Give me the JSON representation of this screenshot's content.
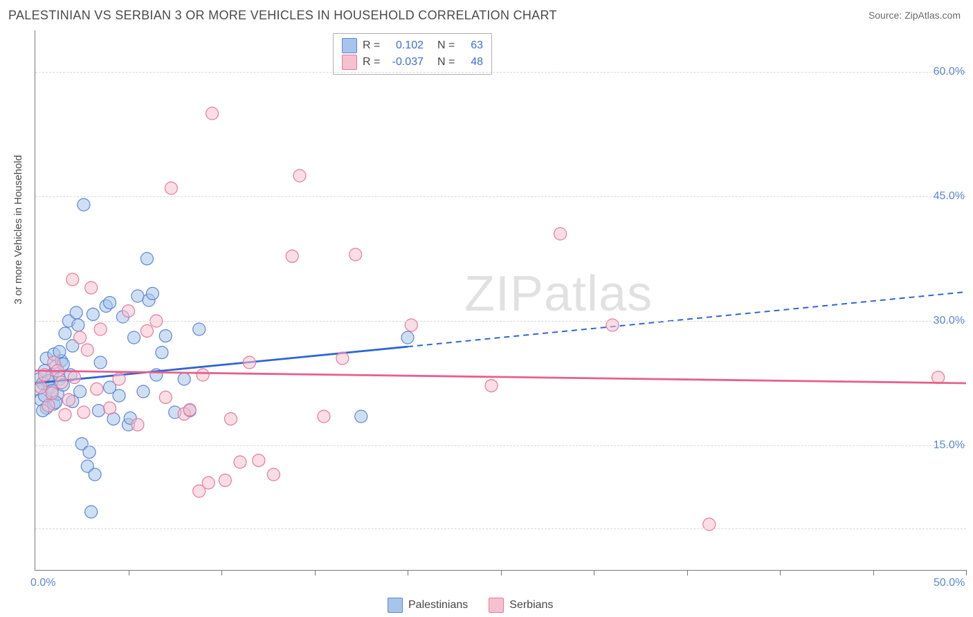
{
  "header": {
    "title": "PALESTINIAN VS SERBIAN 3 OR MORE VEHICLES IN HOUSEHOLD CORRELATION CHART",
    "source": "Source: ZipAtlas.com"
  },
  "watermark": "ZIPatlas",
  "chart": {
    "type": "scatter",
    "ylabel": "3 or more Vehicles in Household",
    "xlim": [
      0,
      50
    ],
    "ylim": [
      0,
      65
    ],
    "xtick_labels": [
      {
        "x": 0,
        "text": "0.0%"
      },
      {
        "x": 50,
        "text": "50.0%"
      }
    ],
    "xtick_marks": [
      5,
      10,
      15,
      20,
      25,
      30,
      35,
      40,
      45,
      50
    ],
    "ytick_labels": [
      {
        "y": 15,
        "text": "15.0%"
      },
      {
        "y": 30,
        "text": "30.0%"
      },
      {
        "y": 45,
        "text": "45.0%"
      },
      {
        "y": 60,
        "text": "60.0%"
      }
    ],
    "grid_y": [
      5,
      15,
      30,
      45,
      60
    ],
    "background_color": "#ffffff",
    "grid_color": "#d8d8d8",
    "axis_color": "#777777",
    "tick_label_color": "#5b86d4",
    "marker_radius": 9,
    "marker_opacity": 0.55,
    "series": [
      {
        "name": "Palestinians",
        "fill": "#a8c4ea",
        "stroke": "#5b86d4",
        "line_color": "#2e66d0",
        "regression": {
          "y0": 22.5,
          "y50": 33.5,
          "solid_until_x": 20
        },
        "points": [
          [
            0.1,
            21.8
          ],
          [
            0.2,
            23
          ],
          [
            0.3,
            20.5
          ],
          [
            0.4,
            22.5
          ],
          [
            0.5,
            24
          ],
          [
            0.5,
            21
          ],
          [
            0.6,
            25.5
          ],
          [
            0.6,
            19.5
          ],
          [
            0.8,
            22
          ],
          [
            0.9,
            23.5
          ],
          [
            1.0,
            20
          ],
          [
            1.0,
            26
          ],
          [
            1.1,
            24.5
          ],
          [
            1.2,
            21.2
          ],
          [
            1.3,
            23
          ],
          [
            1.4,
            25.2
          ],
          [
            1.5,
            24.8
          ],
          [
            1.5,
            22.3
          ],
          [
            1.6,
            28.5
          ],
          [
            1.8,
            30
          ],
          [
            1.9,
            23.5
          ],
          [
            2.0,
            20.3
          ],
          [
            2.0,
            27
          ],
          [
            2.2,
            31
          ],
          [
            2.4,
            21.5
          ],
          [
            2.5,
            15.2
          ],
          [
            2.6,
            44
          ],
          [
            2.8,
            12.5
          ],
          [
            2.9,
            14.2
          ],
          [
            3.0,
            7.0
          ],
          [
            3.2,
            11.5
          ],
          [
            3.4,
            19.2
          ],
          [
            3.5,
            25
          ],
          [
            4.0,
            22
          ],
          [
            4.2,
            18.2
          ],
          [
            4.5,
            21
          ],
          [
            4.7,
            30.5
          ],
          [
            5.0,
            17.5
          ],
          [
            5.1,
            18.3
          ],
          [
            5.3,
            28
          ],
          [
            5.5,
            33
          ],
          [
            5.8,
            21.5
          ],
          [
            6.0,
            37.5
          ],
          [
            6.1,
            32.5
          ],
          [
            6.3,
            33.3
          ],
          [
            6.5,
            23.5
          ],
          [
            6.8,
            26.2
          ],
          [
            7.0,
            28.2
          ],
          [
            7.5,
            19
          ],
          [
            8.0,
            23
          ],
          [
            8.3,
            19.2
          ],
          [
            8.8,
            29
          ],
          [
            17.5,
            18.5
          ],
          [
            20.0,
            28
          ],
          [
            0.7,
            22.8
          ],
          [
            1.1,
            20.2
          ],
          [
            2.3,
            29.5
          ],
          [
            3.1,
            30.8
          ],
          [
            3.8,
            31.8
          ],
          [
            4.0,
            32.2
          ],
          [
            0.4,
            19.2
          ],
          [
            0.9,
            21.6
          ],
          [
            1.3,
            26.3
          ]
        ]
      },
      {
        "name": "Serbians",
        "fill": "#f6c1cf",
        "stroke": "#e47a9a",
        "line_color": "#e85f8c",
        "regression": {
          "y0": 24.0,
          "y50": 22.5,
          "solid_until_x": 50
        },
        "points": [
          [
            0.3,
            22
          ],
          [
            0.5,
            23.5
          ],
          [
            0.7,
            19.8
          ],
          [
            0.9,
            21.3
          ],
          [
            1.0,
            25
          ],
          [
            1.2,
            24
          ],
          [
            1.4,
            22.6
          ],
          [
            1.6,
            18.7
          ],
          [
            1.8,
            20.5
          ],
          [
            2.0,
            35
          ],
          [
            2.1,
            23.2
          ],
          [
            2.4,
            28
          ],
          [
            2.6,
            19
          ],
          [
            2.8,
            26.5
          ],
          [
            3.0,
            34
          ],
          [
            3.3,
            21.8
          ],
          [
            3.5,
            29
          ],
          [
            4.0,
            19.5
          ],
          [
            4.5,
            23
          ],
          [
            5.0,
            31.2
          ],
          [
            5.5,
            17.5
          ],
          [
            6.0,
            28.8
          ],
          [
            6.5,
            30
          ],
          [
            7.0,
            20.8
          ],
          [
            7.3,
            46
          ],
          [
            8.0,
            18.8
          ],
          [
            8.3,
            19.3
          ],
          [
            8.8,
            9.5
          ],
          [
            9.0,
            23.5
          ],
          [
            9.3,
            10.5
          ],
          [
            9.5,
            55
          ],
          [
            10.2,
            10.8
          ],
          [
            10.5,
            18.2
          ],
          [
            11.0,
            13
          ],
          [
            11.5,
            25
          ],
          [
            12.0,
            13.2
          ],
          [
            12.8,
            11.5
          ],
          [
            13.8,
            37.8
          ],
          [
            14.2,
            47.5
          ],
          [
            15.5,
            18.5
          ],
          [
            16.5,
            25.5
          ],
          [
            17.2,
            38
          ],
          [
            20.2,
            29.5
          ],
          [
            24.5,
            22.2
          ],
          [
            28.2,
            40.5
          ],
          [
            31.0,
            29.5
          ],
          [
            36.2,
            5.5
          ],
          [
            48.5,
            23.2
          ]
        ]
      }
    ],
    "legend_top": {
      "rows": [
        {
          "swatch": 0,
          "r_label": "R =",
          "r_val": "0.102",
          "n_label": "N =",
          "n_val": "63"
        },
        {
          "swatch": 1,
          "r_label": "R =",
          "r_val": "-0.037",
          "n_label": "N =",
          "n_val": "48"
        }
      ]
    },
    "legend_bottom": [
      {
        "swatch": 0,
        "label": "Palestinians"
      },
      {
        "swatch": 1,
        "label": "Serbians"
      }
    ]
  }
}
